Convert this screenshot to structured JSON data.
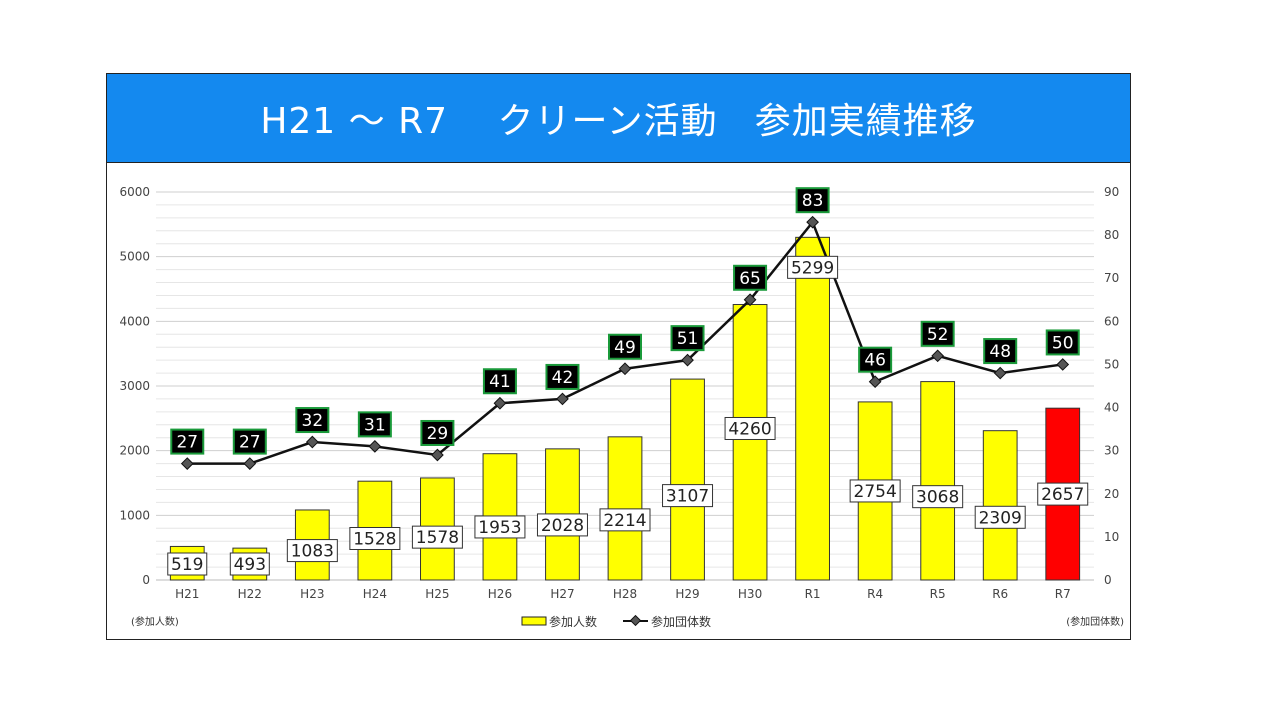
{
  "header": {
    "title": "H21 ～ R7　 クリーン活動　参加実績推移"
  },
  "chart_data": {
    "type": "bar",
    "categories": [
      "H21",
      "H22",
      "H23",
      "H24",
      "H25",
      "H26",
      "H27",
      "H28",
      "H29",
      "H30",
      "R1",
      "R4",
      "R5",
      "R6",
      "R7"
    ],
    "series": [
      {
        "name": "参加人数",
        "type": "bar",
        "axis": "left",
        "values": [
          519,
          493,
          1083,
          1528,
          1578,
          1953,
          2028,
          2214,
          3107,
          4260,
          5299,
          2754,
          3068,
          2309,
          2657
        ]
      },
      {
        "name": "参加団体数",
        "type": "line",
        "axis": "right",
        "values": [
          27,
          27,
          32,
          31,
          29,
          41,
          42,
          49,
          51,
          65,
          83,
          46,
          52,
          48,
          50
        ]
      }
    ],
    "left_axis": {
      "label": "(参加人数)",
      "min": 0,
      "max": 6000,
      "ticks": [
        0,
        1000,
        2000,
        3000,
        4000,
        5000,
        6000
      ]
    },
    "right_axis": {
      "label": "(参加団体数)",
      "min": 0,
      "max": 90,
      "ticks": [
        0,
        10,
        20,
        30,
        40,
        50,
        60,
        70,
        80,
        90
      ]
    },
    "colors": {
      "bar": "#ffff00",
      "bar_highlight": "#ff0000",
      "line": "#111111",
      "marker": "#555555",
      "line_label_bg": "#000000",
      "line_label_border": "#1a9a3a",
      "title_bg": "#1489ef"
    },
    "highlight_category": "R7",
    "grid": true,
    "legend_position": "bottom"
  }
}
